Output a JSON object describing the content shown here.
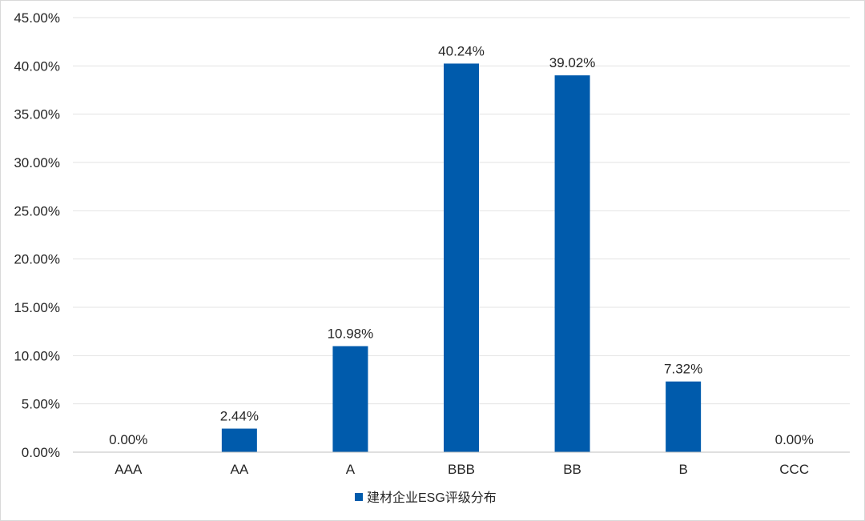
{
  "chart_data": {
    "type": "bar",
    "categories": [
      "AAA",
      "AA",
      "A",
      "BBB",
      "BB",
      "B",
      "CCC"
    ],
    "series": [
      {
        "name": "建材企业ESG评级分布",
        "values": [
          0.0,
          2.44,
          10.98,
          40.24,
          39.02,
          7.32,
          0.0
        ],
        "labels": [
          "0.00%",
          "2.44%",
          "10.98%",
          "40.24%",
          "39.02%",
          "7.32%",
          "0.00%"
        ],
        "color": "#005bac"
      }
    ],
    "y_ticks": [
      "0.00%",
      "5.00%",
      "10.00%",
      "15.00%",
      "20.00%",
      "25.00%",
      "30.00%",
      "35.00%",
      "40.00%",
      "45.00%"
    ],
    "ylim": [
      0,
      45
    ],
    "grid": true,
    "legend_position": "bottom"
  }
}
